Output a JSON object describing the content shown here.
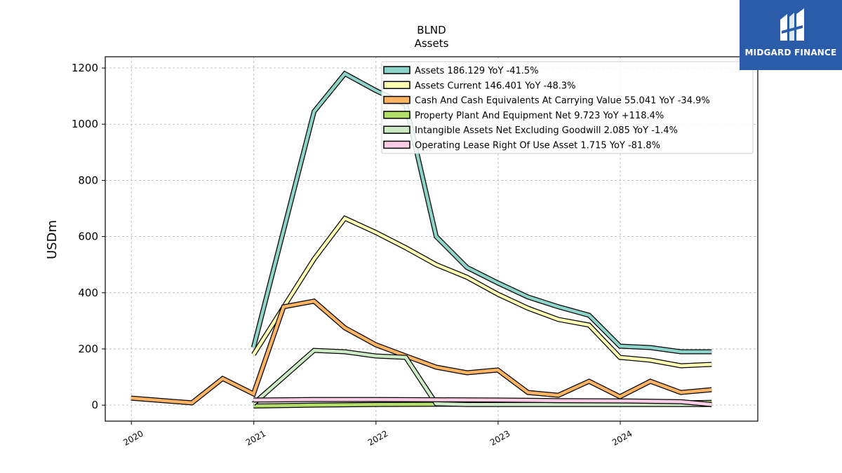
{
  "brand": {
    "name": "MIDGARD FINANCE",
    "bg_color": "#2a5caa"
  },
  "chart_data": {
    "type": "line",
    "title": "BLND",
    "subtitle": "Assets",
    "ylabel": "USDm",
    "xlabel": "",
    "xlim": [
      "2019-10-15",
      "2025-02-15"
    ],
    "ylim": [
      -57,
      1240
    ],
    "y_ticks": [
      0,
      200,
      400,
      600,
      800,
      1000,
      1200
    ],
    "x_ticks": [
      "2020-01-01",
      "2021-01-01",
      "2022-01-01",
      "2023-01-01",
      "2024-01-01"
    ],
    "x_tick_labels": [
      "2020",
      "2021",
      "2022",
      "2023",
      "2024"
    ],
    "grid": true,
    "legend_position": "top-right",
    "series": [
      {
        "name": "Assets",
        "legend": "Assets  186.129 YoY -41.5%",
        "color": "#8dd3c7",
        "points": [
          [
            "2020-12-31",
            205
          ],
          [
            "2021-06-30",
            1045
          ],
          [
            "2021-09-30",
            1180
          ],
          [
            "2021-12-31",
            1120
          ],
          [
            "2022-03-31",
            1070
          ],
          [
            "2022-06-30",
            600
          ],
          [
            "2022-09-30",
            490
          ],
          [
            "2022-12-31",
            435
          ],
          [
            "2023-03-31",
            385
          ],
          [
            "2023-06-30",
            350
          ],
          [
            "2023-09-30",
            320
          ],
          [
            "2023-12-31",
            210
          ],
          [
            "2024-03-31",
            205
          ],
          [
            "2024-06-30",
            190
          ],
          [
            "2024-09-30",
            190
          ]
        ]
      },
      {
        "name": "Assets Current",
        "legend": "Assets Current  146.401 YoY -48.3%",
        "color": "#ffffb3",
        "points": [
          [
            "2020-12-31",
            180
          ],
          [
            "2021-06-30",
            520
          ],
          [
            "2021-09-30",
            665
          ],
          [
            "2021-12-31",
            615
          ],
          [
            "2022-03-31",
            560
          ],
          [
            "2022-06-30",
            500
          ],
          [
            "2022-09-30",
            455
          ],
          [
            "2022-12-31",
            395
          ],
          [
            "2023-03-31",
            345
          ],
          [
            "2023-06-30",
            305
          ],
          [
            "2023-09-30",
            285
          ],
          [
            "2023-12-31",
            170
          ],
          [
            "2024-03-31",
            160
          ],
          [
            "2024-06-30",
            140
          ],
          [
            "2024-09-30",
            145
          ]
        ]
      },
      {
        "name": "Cash And Cash Equivalents At Carrying Value",
        "legend": "Cash And Cash Equivalents At Carrying Value  55.041 YoY -34.9%",
        "color": "#fdb462",
        "points": [
          [
            "2019-12-31",
            25
          ],
          [
            "2020-06-30",
            8
          ],
          [
            "2020-09-30",
            95
          ],
          [
            "2020-12-31",
            40
          ],
          [
            "2021-03-31",
            350
          ],
          [
            "2021-06-30",
            370
          ],
          [
            "2021-09-30",
            275
          ],
          [
            "2021-12-31",
            215
          ],
          [
            "2022-03-31",
            175
          ],
          [
            "2022-06-30",
            135
          ],
          [
            "2022-09-30",
            115
          ],
          [
            "2022-12-31",
            125
          ],
          [
            "2023-03-31",
            45
          ],
          [
            "2023-06-30",
            35
          ],
          [
            "2023-09-30",
            85
          ],
          [
            "2023-12-31",
            30
          ],
          [
            "2024-03-31",
            85
          ],
          [
            "2024-06-30",
            45
          ],
          [
            "2024-09-30",
            55
          ]
        ]
      },
      {
        "name": "Property Plant And Equipment Net",
        "legend": "Property Plant And Equipment Net  9.723 YoY +118.4%",
        "color": "#b3de69",
        "points": [
          [
            "2020-12-31",
            -3
          ],
          [
            "2021-06-30",
            0
          ],
          [
            "2021-12-31",
            2
          ],
          [
            "2022-06-30",
            3
          ],
          [
            "2022-12-31",
            4
          ],
          [
            "2023-06-30",
            5
          ],
          [
            "2023-12-31",
            6
          ],
          [
            "2024-06-30",
            8
          ],
          [
            "2024-09-30",
            9.7
          ]
        ]
      },
      {
        "name": "Intangible Assets Net Excluding Goodwill",
        "legend": "Intangible Assets Net Excluding Goodwill  2.085 YoY -1.4%",
        "color": "#ccebc5",
        "points": [
          [
            "2020-12-31",
            5
          ],
          [
            "2021-06-30",
            195
          ],
          [
            "2021-09-30",
            190
          ],
          [
            "2021-12-31",
            175
          ],
          [
            "2022-03-31",
            170
          ],
          [
            "2022-06-30",
            5
          ],
          [
            "2022-09-30",
            2
          ],
          [
            "2022-12-31",
            2
          ],
          [
            "2023-06-30",
            2
          ],
          [
            "2023-12-31",
            2
          ],
          [
            "2024-06-30",
            2
          ],
          [
            "2024-09-30",
            2
          ]
        ]
      },
      {
        "name": "Operating Lease Right Of Use Asset",
        "legend": "Operating Lease Right Of Use Asset  1.715 YoY -81.8%",
        "color": "#fccde5",
        "points": [
          [
            "2020-12-31",
            18
          ],
          [
            "2021-06-30",
            20
          ],
          [
            "2021-12-31",
            20
          ],
          [
            "2022-06-30",
            19
          ],
          [
            "2022-12-31",
            18
          ],
          [
            "2023-06-30",
            16
          ],
          [
            "2023-12-31",
            15
          ],
          [
            "2024-06-30",
            12
          ],
          [
            "2024-09-30",
            2
          ]
        ]
      }
    ]
  }
}
